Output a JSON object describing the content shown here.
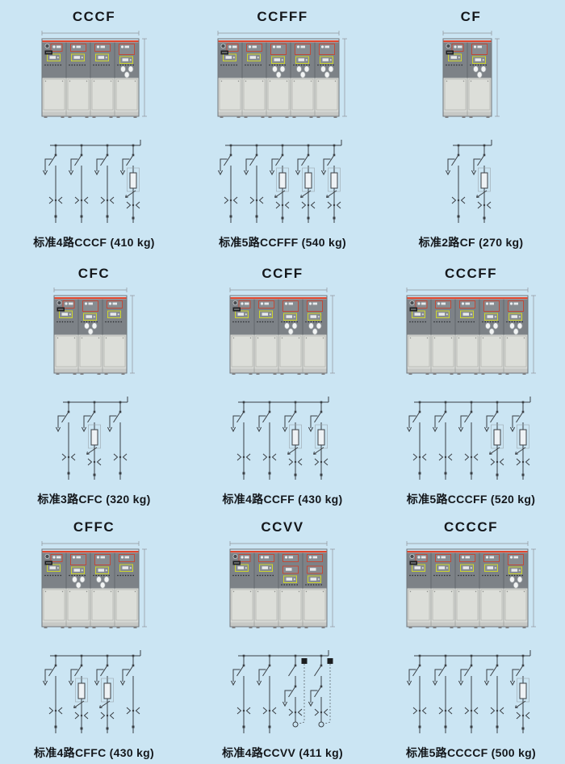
{
  "page": {
    "background": "#cbe5f3",
    "description_language": "zh-CN"
  },
  "colors": {
    "background": "#cbe5f3",
    "red_strip": "#e0482f",
    "module_red": "#c8432f",
    "module_yellow": "#cdd52e",
    "cabinet_dark": "#7d8287",
    "cabinet_light": "#d8dad6",
    "panel_inner": "#dcded9",
    "schematic_line": "#3a3f44",
    "dimension_line": "#8f9398",
    "text": "#14171b"
  },
  "panels": [
    {
      "title": "CCCF",
      "bays": "CCCF",
      "caption": "标准4路CCCF (410 kg)"
    },
    {
      "title": "CCFFF",
      "bays": "CCFFF",
      "caption": "标准5路CCFFF (540 kg)"
    },
    {
      "title": "CF",
      "bays": "CF",
      "caption": "标准2路CF (270 kg)"
    },
    {
      "title": "CFC",
      "bays": "CFC",
      "caption": "标准3路CFC (320 kg)"
    },
    {
      "title": "CCFF",
      "bays": "CCFF",
      "caption": "标准4路CCFF (430 kg)"
    },
    {
      "title": "CCCFF",
      "bays": "CCCFF",
      "caption": "标准5路CCCFF (520 kg)"
    },
    {
      "title": "CFFC",
      "bays": "CFFC",
      "caption": "标准4路CFFC (430 kg)"
    },
    {
      "title": "CCVV",
      "bays": "CCVV",
      "caption": "标准4路CCVV (411 kg)"
    },
    {
      "title": "CCCCF",
      "bays": "CCCCF",
      "caption": "标准5路CCCCF (500 kg)"
    }
  ],
  "legend": {
    "C": "load-break-switch-unit",
    "F": "fuse-switch-unit",
    "V": "vacuum-breaker-unit"
  }
}
